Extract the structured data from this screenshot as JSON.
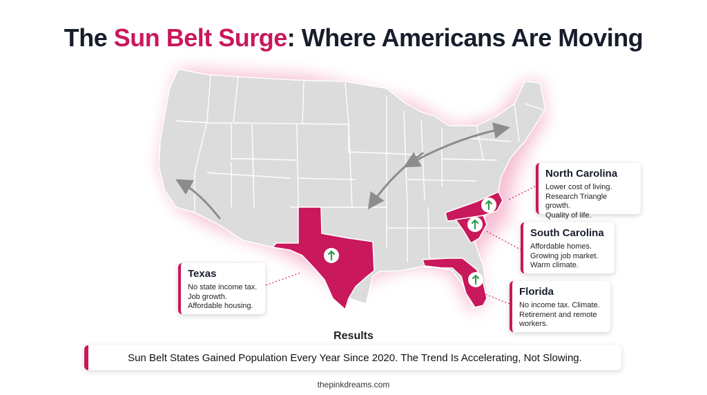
{
  "title": {
    "part1": "The ",
    "highlight": "Sun Belt Surge",
    "part2": ": Where Americans Are Moving"
  },
  "callouts": {
    "texas": {
      "title": "Texas",
      "lines": [
        "No state income tax.",
        "Job growth.",
        "Affordable housing."
      ]
    },
    "north_carolina": {
      "title": "North Carolina",
      "lines": [
        "Lower cost of living.",
        "Research Triangle growth.",
        "Quality of life."
      ]
    },
    "south_carolina": {
      "title": "South Carolina",
      "lines": [
        "Affordable homes.",
        "Growing job market.",
        "Warm climate."
      ]
    },
    "florida": {
      "title": "Florida",
      "lines": [
        "No income tax. Climate.",
        "Retirement and remote",
        "workers."
      ]
    }
  },
  "results_label": "Results",
  "banner": "Sun Belt States Gained Population Every Year Since 2020. The Trend Is Accelerating, Not Slowing.",
  "footer": "thepinkdreams.com",
  "colors": {
    "accent": "#c9185b",
    "map_fill": "#dcdcdc",
    "state_border": "#ffffff",
    "arrow": "#8c8c8c",
    "up_arrow": "#2e9a4a"
  },
  "icons": {
    "growth_marker": "up-arrow-icon",
    "migration_arrows": "migration-arrow"
  }
}
